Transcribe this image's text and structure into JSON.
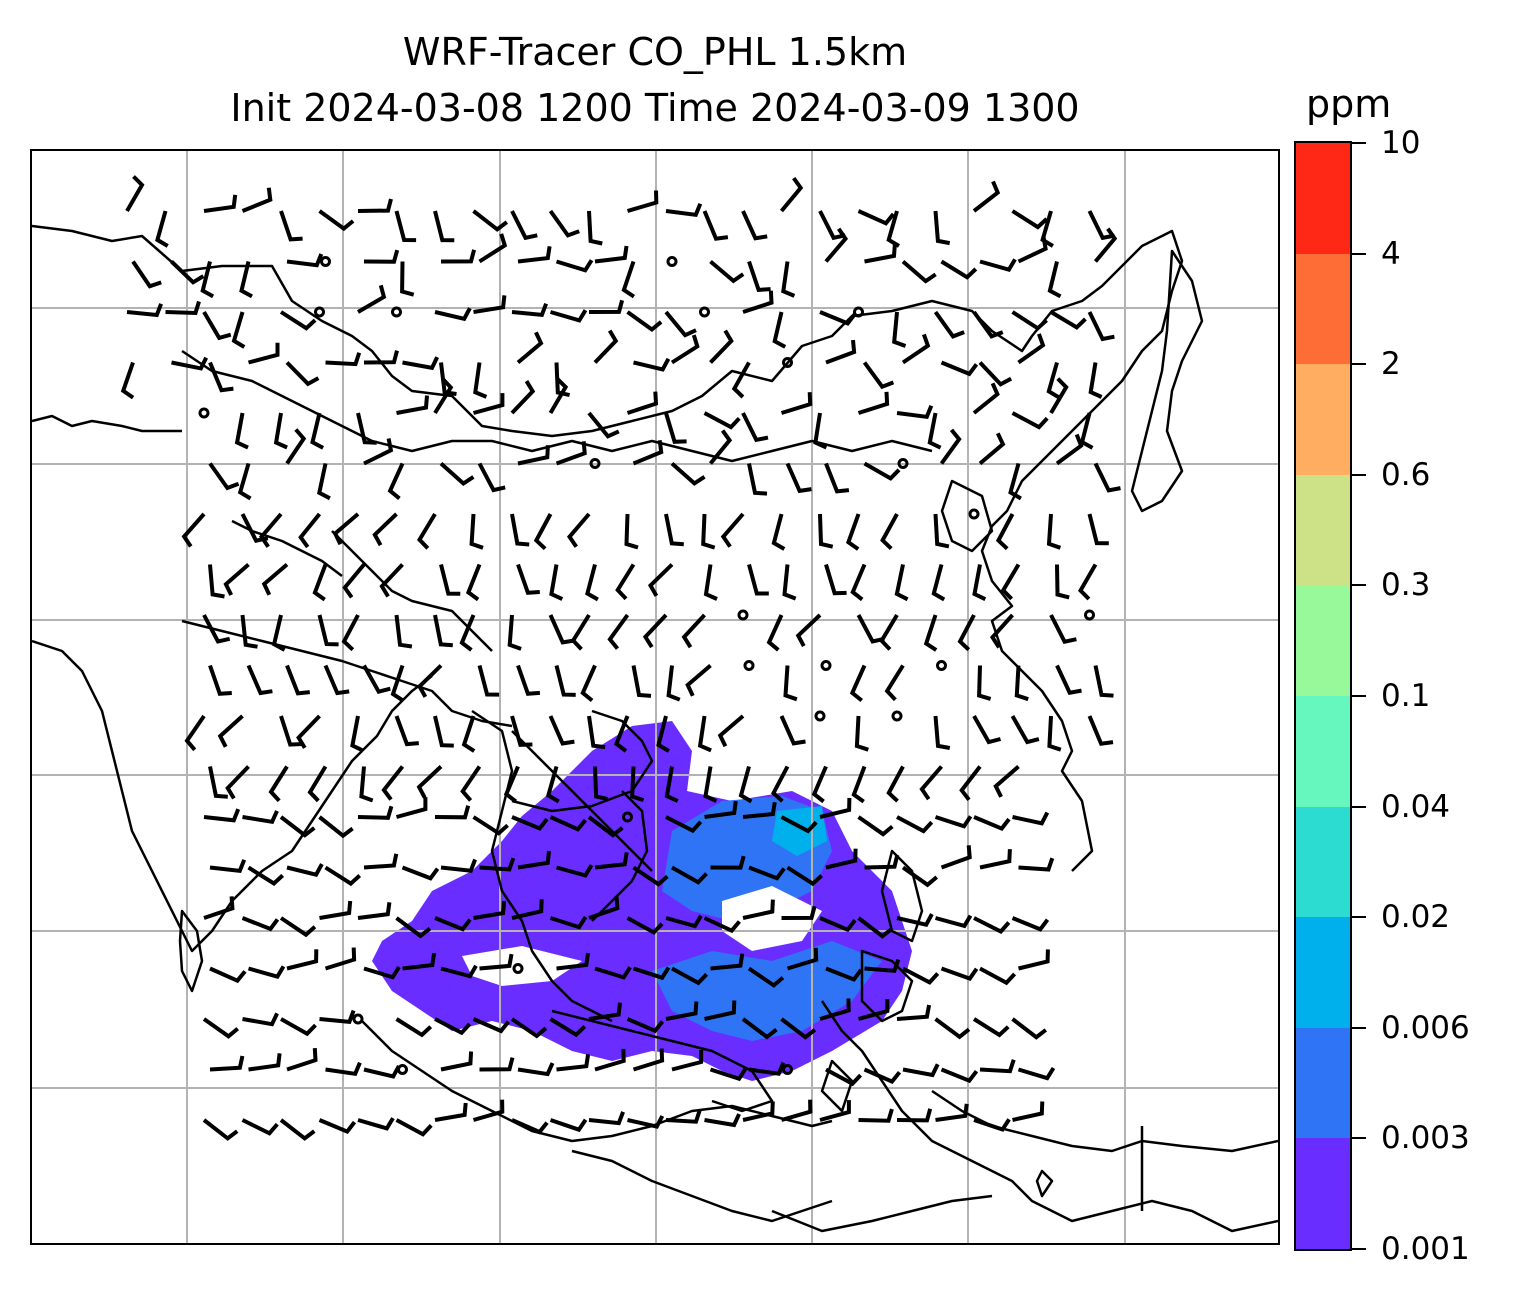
{
  "title_line1": "WRF-Tracer CO_PHL 1.5km",
  "title_line2": "Init 2024-03-08 1200 Time 2024-03-09 1300",
  "colorbar": {
    "unit": "ppm",
    "ticks": [
      "0.001",
      "0.003",
      "0.006",
      "0.02",
      "0.04",
      "0.1",
      "0.3",
      "0.6",
      "2",
      "4",
      "10"
    ],
    "colors": [
      "#6a2dff",
      "#2f74f5",
      "#00b0ec",
      "#2ddcd0",
      "#66f7bf",
      "#98f99a",
      "#cde287",
      "#ffad60",
      "#ff6d37",
      "#ff2816"
    ]
  },
  "map": {
    "layers": [
      "coastlines",
      "country-borders",
      "graticule",
      "tracer-fill",
      "wind-barbs"
    ],
    "tracer_colors_present": [
      "#6a2dff",
      "#2f74f5",
      "#00b0ec"
    ]
  }
}
